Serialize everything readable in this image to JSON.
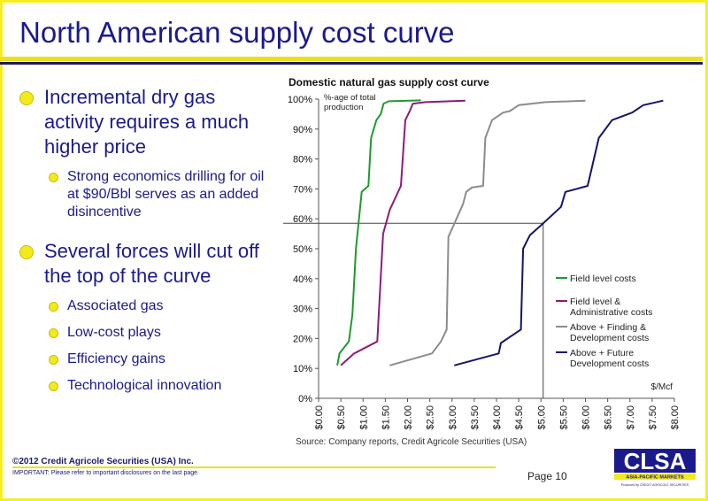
{
  "slide": {
    "title": "North American supply cost curve",
    "bullets": [
      {
        "text": "Incremental dry gas activity requires a much higher price",
        "level": 1
      },
      {
        "text": "Strong economics drilling for oil at $90/Bbl serves as an added disincentive",
        "level": 2
      },
      {
        "text": "Several forces will cut off the top of the curve",
        "level": 1
      },
      {
        "text": "Associated gas",
        "level": 2
      },
      {
        "text": "Low-cost plays",
        "level": 2
      },
      {
        "text": "Efficiency gains",
        "level": 2
      },
      {
        "text": "Technological innovation",
        "level": 2
      }
    ],
    "source": "Source: Company reports, Credit Agricole Securities (USA)",
    "copyright": "©2012 Credit Agricole Securities (USA) Inc.",
    "important": "IMPORTANT: Please refer to important disclosures on the last page.",
    "page": "Page 10",
    "logo": {
      "name": "CLSA",
      "tagline": "ASIA-PACIFIC MARKETS",
      "small_print": "Produced by CREDIT AGRICOLE SECURITIES"
    }
  },
  "colors": {
    "title": "#1a1a8c",
    "accent_yellow": "#f2ea1c",
    "series": [
      "#1f9a2e",
      "#8e1a7a",
      "#8c8c8c",
      "#141470"
    ]
  },
  "chart_data": {
    "type": "line",
    "title": "Domestic natural gas supply cost curve",
    "ylabel": "%-age of total production",
    "xlabel": "$/Mcf",
    "xlim": [
      0,
      8
    ],
    "ylim": [
      0,
      100
    ],
    "x_ticks": [
      "$0.00",
      "$0.50",
      "$1.00",
      "$1.50",
      "$2.00",
      "$2.50",
      "$3.00",
      "$3.50",
      "$4.00",
      "$4.50",
      "$5.00",
      "$5.50",
      "$6.00",
      "$6.50",
      "$7.00",
      "$7.50",
      "$8.00"
    ],
    "y_ticks": [
      "0%",
      "10%",
      "20%",
      "30%",
      "40%",
      "50%",
      "60%",
      "70%",
      "80%",
      "90%",
      "100%"
    ],
    "grid": false,
    "legend_position": "right",
    "reference_lines": {
      "y": 58.5,
      "x": 5.05
    },
    "series": [
      {
        "name": "Field level costs",
        "points": [
          [
            0.42,
            11
          ],
          [
            0.47,
            15
          ],
          [
            0.68,
            19
          ],
          [
            0.76,
            28
          ],
          [
            0.84,
            50
          ],
          [
            0.97,
            69
          ],
          [
            1.12,
            71
          ],
          [
            1.18,
            87
          ],
          [
            1.3,
            93
          ],
          [
            1.4,
            95
          ],
          [
            1.46,
            98.5
          ],
          [
            1.58,
            99.3
          ],
          [
            2.3,
            99.6
          ]
        ]
      },
      {
        "name": "Field level & Administrative costs",
        "points": [
          [
            0.5,
            11
          ],
          [
            0.8,
            15
          ],
          [
            1.32,
            19
          ],
          [
            1.45,
            55
          ],
          [
            1.6,
            63
          ],
          [
            1.85,
            71
          ],
          [
            1.95,
            93
          ],
          [
            2.05,
            96
          ],
          [
            2.12,
            98.5
          ],
          [
            2.4,
            99
          ],
          [
            3.3,
            99.5
          ]
        ]
      },
      {
        "name": "Above + Finding & Development costs",
        "points": [
          [
            1.6,
            11
          ],
          [
            2.55,
            15
          ],
          [
            2.75,
            19
          ],
          [
            2.88,
            23
          ],
          [
            2.92,
            54
          ],
          [
            3.1,
            60
          ],
          [
            3.25,
            65
          ],
          [
            3.32,
            69
          ],
          [
            3.45,
            70.5
          ],
          [
            3.7,
            71
          ],
          [
            3.75,
            87
          ],
          [
            3.9,
            93
          ],
          [
            4.15,
            95.5
          ],
          [
            4.3,
            96
          ],
          [
            4.5,
            98
          ],
          [
            5.1,
            99
          ],
          [
            6.0,
            99.5
          ]
        ]
      },
      {
        "name": "Above + Future Development costs",
        "points": [
          [
            3.05,
            11
          ],
          [
            4.05,
            15
          ],
          [
            4.1,
            18.5
          ],
          [
            4.55,
            23
          ],
          [
            4.6,
            50
          ],
          [
            4.75,
            54.5
          ],
          [
            5.05,
            58.5
          ],
          [
            5.45,
            64
          ],
          [
            5.55,
            69
          ],
          [
            6.05,
            71
          ],
          [
            6.3,
            87
          ],
          [
            6.6,
            93
          ],
          [
            7.05,
            95.5
          ],
          [
            7.3,
            98
          ],
          [
            7.75,
            99.5
          ]
        ]
      }
    ]
  }
}
